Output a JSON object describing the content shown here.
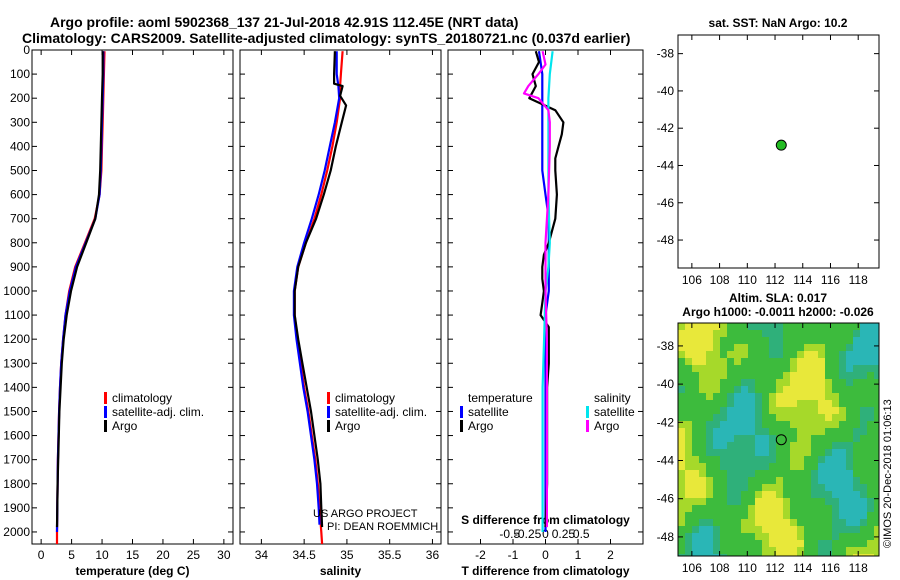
{
  "header": {
    "line1": "Argo profile: aoml 5902368_137 21-Jul-2018 42.91S 112.45E (NRT data)",
    "line2": "Climatology: CARS2009. Satellite-adjusted climatology: synTS_20180721.nc (0.037d earlier)"
  },
  "colors": {
    "climatology": "#ff0000",
    "satellite": "#0000ff",
    "argo": "#000000",
    "sat_salinity": "#00e5ee",
    "argo_salinity": "#ff00ff",
    "marker": "#22bb22"
  },
  "depth_axis": {
    "range": [
      0,
      2050
    ],
    "ticks": [
      0,
      100,
      200,
      300,
      400,
      500,
      600,
      700,
      800,
      900,
      1000,
      1100,
      1200,
      1300,
      1400,
      1500,
      1600,
      1700,
      1800,
      1900,
      2000
    ]
  },
  "chart_data": [
    {
      "type": "line",
      "id": "temp",
      "xlabel": "temperature (deg C)",
      "xlim": [
        -1.5,
        31.5
      ],
      "xticks": [
        0,
        5,
        10,
        15,
        20,
        25,
        30
      ],
      "xtick_labels": [
        "0",
        "5",
        "10",
        "15",
        "20",
        "25",
        "30"
      ],
      "ylim": [
        0,
        2050
      ],
      "legend": [
        "climatology",
        "satellite-adj. clim.",
        "Argo"
      ],
      "series": [
        {
          "name": "climatology",
          "color": "#ff0000",
          "depth": [
            5,
            100,
            200,
            300,
            400,
            500,
            600,
            700,
            800,
            900,
            1000,
            1100,
            1200,
            1300,
            1400,
            1500,
            1600,
            1700,
            1800,
            1900,
            2000,
            2050
          ],
          "values": [
            10.4,
            10.3,
            10.2,
            10.1,
            10.0,
            9.9,
            9.6,
            8.8,
            7.2,
            5.6,
            4.6,
            4.0,
            3.6,
            3.3,
            3.1,
            2.95,
            2.85,
            2.75,
            2.7,
            2.65,
            2.6,
            2.6
          ]
        },
        {
          "name": "satellite-adj. clim.",
          "color": "#0000ff",
          "depth": [
            5,
            100,
            200,
            300,
            400,
            500,
            600,
            700,
            800,
            900,
            1000,
            1100,
            1200,
            1300,
            1400,
            1500,
            1600,
            1700,
            1800,
            1900,
            2000
          ],
          "values": [
            10.2,
            10.2,
            10.1,
            10.0,
            9.9,
            9.8,
            9.6,
            8.9,
            7.3,
            5.7,
            4.7,
            4.0,
            3.6,
            3.3,
            3.1,
            2.95,
            2.85,
            2.75,
            2.7,
            2.65,
            2.6
          ]
        },
        {
          "name": "Argo",
          "color": "#000000",
          "depth": [
            5,
            100,
            200,
            300,
            400,
            500,
            600,
            700,
            800,
            900,
            1000,
            1100,
            1200,
            1300,
            1400,
            1500,
            1600,
            1700,
            1800,
            1900,
            1980
          ],
          "values": [
            10.1,
            10.1,
            10.0,
            9.9,
            9.8,
            9.7,
            9.5,
            8.9,
            7.4,
            5.9,
            4.9,
            4.2,
            3.7,
            3.4,
            3.2,
            3.0,
            2.9,
            2.8,
            2.7,
            2.65,
            2.6
          ]
        }
      ]
    },
    {
      "type": "line",
      "id": "sal",
      "xlabel": "salinity",
      "xlim": [
        33.75,
        36.1
      ],
      "xticks": [
        34,
        34.5,
        35,
        35.5,
        36
      ],
      "xtick_labels": [
        "34",
        "34.5",
        "35",
        "35.5",
        "36"
      ],
      "ylim": [
        0,
        2050
      ],
      "legend": [
        "climatology",
        "satellite-adj. clim.",
        "Argo"
      ],
      "annotation": [
        "US ARGO PROJECT",
        "PI: DEAN ROEMMICH"
      ],
      "series": [
        {
          "name": "climatology",
          "color": "#ff0000",
          "depth": [
            5,
            100,
            150,
            200,
            300,
            400,
            500,
            600,
            700,
            800,
            900,
            1000,
            1100,
            1200,
            1300,
            1400,
            1500,
            1600,
            1700,
            1800,
            1900,
            2000,
            2050
          ],
          "values": [
            34.95,
            34.93,
            34.92,
            34.92,
            34.88,
            34.83,
            34.77,
            34.7,
            34.62,
            34.52,
            34.43,
            34.39,
            34.39,
            34.42,
            34.46,
            34.5,
            34.55,
            34.59,
            34.63,
            34.66,
            34.68,
            34.7,
            34.71
          ]
        },
        {
          "name": "satellite-adj. clim.",
          "color": "#0000ff",
          "depth": [
            5,
            100,
            150,
            200,
            300,
            400,
            500,
            600,
            700,
            800,
            900,
            1000,
            1100,
            1200,
            1300,
            1400,
            1500,
            1600,
            1700,
            1800,
            1900,
            1970
          ],
          "values": [
            34.88,
            34.88,
            34.9,
            34.91,
            34.86,
            34.8,
            34.74,
            34.67,
            34.59,
            34.5,
            34.42,
            34.38,
            34.38,
            34.41,
            34.45,
            34.49,
            34.54,
            34.58,
            34.62,
            34.65,
            34.67,
            34.68
          ]
        },
        {
          "name": "Argo",
          "color": "#000000",
          "depth": [
            5,
            100,
            140,
            150,
            190,
            230,
            300,
            400,
            500,
            600,
            700,
            800,
            900,
            1000,
            1100,
            1200,
            1300,
            1400,
            1500,
            1600,
            1700,
            1800,
            1900,
            1980
          ],
          "values": [
            34.86,
            34.85,
            34.85,
            34.95,
            34.92,
            34.99,
            34.94,
            34.87,
            34.81,
            34.73,
            34.64,
            34.52,
            34.43,
            34.39,
            34.39,
            34.43,
            34.48,
            34.53,
            34.58,
            34.62,
            34.66,
            34.69,
            34.7,
            34.71
          ]
        }
      ]
    },
    {
      "type": "line",
      "id": "diff",
      "xlabel": "T difference from climatology",
      "xlabel2": "S difference from climatology",
      "xlim": [
        -3,
        3
      ],
      "xticks": [
        -2,
        -1,
        0,
        1,
        2
      ],
      "xtick_labels": [
        "-2",
        "-1",
        "0",
        "1",
        "2"
      ],
      "s_ticks": [
        -0.5,
        -0.25,
        0,
        0.25,
        0.5
      ],
      "s_tick_labels": [
        "-0.5",
        "-0.25",
        "0",
        "0.25",
        "0.5"
      ],
      "ylim": [
        0,
        2050
      ],
      "legend_left_title": "temperature",
      "legend_right_title": "salinity",
      "legend": [
        "satellite",
        "Argo",
        "satellite",
        "Argo"
      ],
      "series": [
        {
          "name": "T satellite",
          "color": "#0000ff",
          "depth": [
            5,
            100,
            200,
            300,
            400,
            500,
            600,
            700,
            800,
            900,
            1000,
            1100,
            1200,
            1400,
            1600,
            1800,
            2000
          ],
          "values": [
            -0.2,
            -0.1,
            -0.1,
            -0.1,
            -0.1,
            -0.1,
            0.0,
            0.1,
            0.1,
            0.1,
            0.1,
            0.0,
            0.0,
            0.0,
            0.0,
            0.0,
            0.0
          ]
        },
        {
          "name": "T Argo",
          "color": "#000000",
          "depth": [
            5,
            50,
            100,
            150,
            200,
            250,
            300,
            350,
            400,
            450,
            500,
            600,
            700,
            800,
            850,
            900,
            950,
            1000,
            1050,
            1100,
            1150,
            1200,
            1300,
            1400,
            1600,
            1800,
            1980
          ],
          "values": [
            -0.3,
            -0.2,
            -0.4,
            -0.3,
            -0.5,
            0.3,
            0.55,
            0.5,
            0.4,
            0.3,
            0.3,
            0.35,
            0.3,
            0.1,
            -0.05,
            -0.1,
            -0.1,
            -0.05,
            -0.1,
            -0.15,
            0.1,
            0.1,
            0.1,
            0.05,
            0.05,
            0.05,
            0.0
          ]
        },
        {
          "name": "S satellite",
          "color": "#00e5ee",
          "depth": [
            5,
            100,
            200,
            300,
            400,
            600,
            800,
            900,
            1000,
            1200,
            1400,
            1600,
            1800,
            2000
          ],
          "values": [
            0.05,
            0.03,
            0.02,
            0.02,
            0.02,
            0.02,
            0.03,
            0.02,
            0.0,
            -0.01,
            -0.02,
            -0.02,
            -0.02,
            -0.02
          ]
        },
        {
          "name": "S Argo",
          "color": "#ff00ff",
          "depth": [
            5,
            60,
            100,
            150,
            180,
            200,
            250,
            300,
            400,
            600,
            800,
            1000,
            1200,
            1400,
            1600,
            1800,
            1980
          ],
          "values": [
            -0.02,
            0.0,
            -0.05,
            -0.12,
            -0.15,
            -0.05,
            0.02,
            0.03,
            0.03,
            0.02,
            0.0,
            0.0,
            0.01,
            0.01,
            0.01,
            0.01,
            0.01
          ]
        }
      ]
    }
  ],
  "map_sst": {
    "title": "sat. SST: NaN Argo: 10.2",
    "xticks": [
      106,
      108,
      110,
      112,
      114,
      116,
      118
    ],
    "yticks": [
      -38,
      -40,
      -42,
      -44,
      -46,
      -48
    ],
    "xlim": [
      105,
      119.5
    ],
    "ylim": [
      -49.5,
      -37
    ],
    "marker_lon": 112.45,
    "marker_lat": -42.91
  },
  "map_sla": {
    "title_line1": "Altim. SLA: 0.017",
    "title_line2": "Argo h1000: -0.0011 h2000: -0.026",
    "xticks": [
      106,
      108,
      110,
      112,
      114,
      116,
      118
    ],
    "yticks": [
      -38,
      -40,
      -42,
      -44,
      -46,
      -48
    ],
    "xlim": [
      105,
      119.5
    ],
    "ylim": [
      -49,
      -36.8
    ],
    "marker_lon": 112.45,
    "marker_lat": -42.91
  },
  "credit": "©IMOS 20-Dec-2018 01:06:13"
}
